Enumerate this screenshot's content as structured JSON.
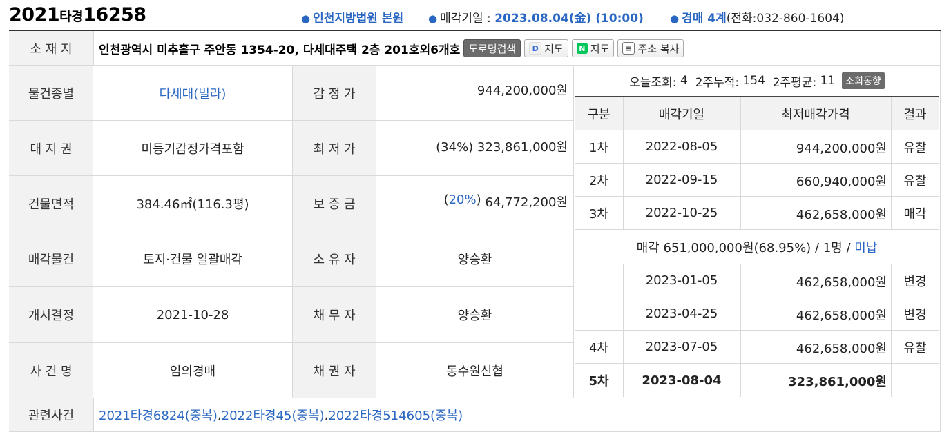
{
  "header": {
    "case_year": "2021",
    "case_type": "타경",
    "case_number": "16258",
    "court": "인천지방법원 본원",
    "sale_date_label": "매각기일 :",
    "sale_date": "2023.08.04(金) (10:00)",
    "department": "경매 4계",
    "phone": "(전화:032-860-1604)"
  },
  "address": {
    "label": "소 재 지",
    "value": "인천광역시 미추홀구 주안동 1354-20, 다세대주택 2층 201호외6개호",
    "buttons": {
      "road_search": "도로명검색",
      "daum_map": "지도",
      "naver_map": "지도",
      "copy": "주소 복사"
    }
  },
  "info_rows": [
    {
      "label1": "물건종별",
      "value1": "다세대(빌라)",
      "label2": "감 정 가",
      "value2": "944,200,000원"
    },
    {
      "label1": "대 지 권",
      "value1": "미등기감정가격포함",
      "label2": "최 저 가",
      "value2": "(34%) 323,861,000원"
    },
    {
      "label1": "건물면적",
      "value1": "384.46㎡(116.3평)",
      "label2": "보 증 금",
      "value2_pct": "20%",
      "value2_amt": "64,772,200원"
    },
    {
      "label1": "매각물건",
      "value1": "토지·건물 일괄매각",
      "label2": "소 유 자",
      "value2": "양승환"
    },
    {
      "label1": "개시결정",
      "value1": "2021-10-28",
      "label2": "채 무 자",
      "value2": "양승환"
    },
    {
      "label1": "사 건 명",
      "value1": "임의경매",
      "label2": "채 권 자",
      "value2": "동수원신협"
    }
  ],
  "stats": {
    "today_label": "오늘조회:",
    "today": "4",
    "two_week_label": "2주누적:",
    "two_week": "154",
    "avg_label": "2주평균:",
    "avg": "11",
    "trend_button": "조회동향"
  },
  "history": {
    "headers": [
      "구분",
      "매각기일",
      "최저매각가격",
      "결과"
    ],
    "rows": [
      {
        "round": "1차",
        "date": "2022-08-05",
        "price": "944,200,000원",
        "result": "유찰"
      },
      {
        "round": "2차",
        "date": "2022-09-15",
        "price": "660,940,000원",
        "result": "유찰"
      },
      {
        "round": "3차",
        "date": "2022-10-25",
        "price": "462,658,000원",
        "result": "매각"
      }
    ],
    "sold_note_main": "매각 651,000,000원(68.95%) / 1명 /",
    "sold_note_status": "미납",
    "rows2": [
      {
        "round": "",
        "date": "2023-01-05",
        "price": "462,658,000원",
        "result": "변경"
      },
      {
        "round": "",
        "date": "2023-04-25",
        "price": "462,658,000원",
        "result": "변경"
      },
      {
        "round": "4차",
        "date": "2023-07-05",
        "price": "462,658,000원",
        "result": "유찰"
      },
      {
        "round": "5차",
        "date": "2023-08-04",
        "price": "323,861,000원",
        "result": ""
      }
    ]
  },
  "related": {
    "label": "관련사건",
    "cases": [
      "2021타경6824(중복)",
      "2022타경45(중복)",
      "2022타경514605(중복)"
    ],
    "separator": ", "
  },
  "colors": {
    "accent": "#2a67c2",
    "label_bg": "#f2f2f2",
    "border": "#d9d9d9"
  }
}
